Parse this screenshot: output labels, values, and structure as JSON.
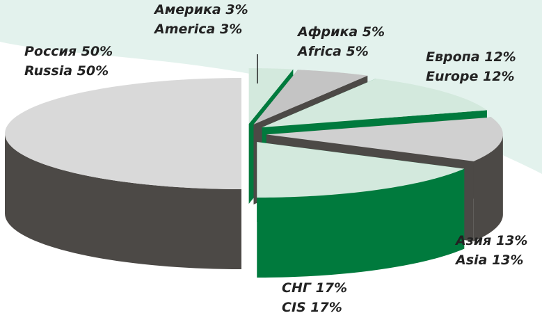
{
  "chart_data": {
    "type": "pie",
    "labels": [
      {
        "ru": "Россия 50%",
        "en": "Russia 50%"
      },
      {
        "ru": "Америка 3%",
        "en": "America 3%"
      },
      {
        "ru": "Африка 5%",
        "en": "Africa 5%"
      },
      {
        "ru": "Европа 12%",
        "en": "Europe 12%"
      },
      {
        "ru": "Азия 13%",
        "en": "Asia 13%"
      },
      {
        "ru": "СНГ 17%",
        "en": "CIS 17%"
      }
    ],
    "values": [
      50,
      3,
      5,
      12,
      13,
      17
    ],
    "colors": [
      "#d9d9d9",
      "#d3e9dd",
      "#c4c4c4",
      "#d3e9dd",
      "#d0d0d0",
      "#d3e9dd"
    ],
    "side_colors": [
      "#4c4946",
      "#007a3d",
      "#4c4946",
      "#007a3d",
      "#4c4946",
      "#007a3d"
    ]
  }
}
